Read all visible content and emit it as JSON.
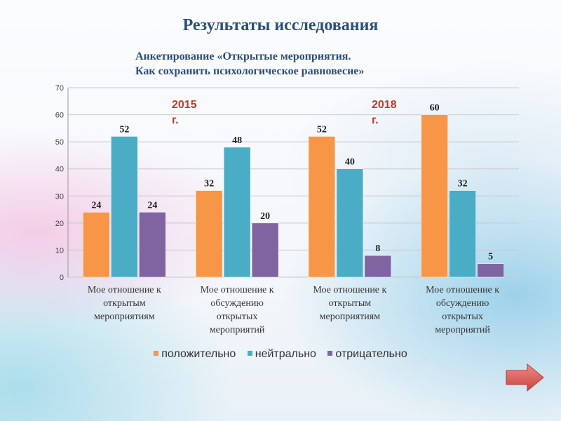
{
  "title": "Результаты исследования",
  "subtitle": {
    "line1": "Анкетирование «Открытые мероприятия.",
    "line2": "Как сохранить психологическое равновесие»"
  },
  "year_labels": [
    {
      "number": "2015",
      "suffix": "г."
    },
    {
      "number": "2018",
      "suffix": "г."
    }
  ],
  "colors": {
    "положительно": "#f79646",
    "нейтрально": "#4bacc6",
    "отрицательно": "#8064a2",
    "arrow": "#e05f5a"
  },
  "nav": {
    "next_icon": "arrow-right-icon"
  },
  "chart_data": {
    "type": "bar",
    "categories": [
      [
        "Мое отношение к",
        "открытым",
        "мероприятиям"
      ],
      [
        "Мое отношение к",
        "обсуждению",
        "открытых",
        "мероприятий"
      ],
      [
        "Мое отношение к",
        "открытым",
        "мероприятиям"
      ],
      [
        "Мое отношение к",
        "обсуждению",
        "открытых",
        "мероприятий"
      ]
    ],
    "series": [
      {
        "name": "положительно",
        "values": [
          24,
          32,
          52,
          60
        ]
      },
      {
        "name": "нейтрально",
        "values": [
          52,
          48,
          40,
          32
        ]
      },
      {
        "name": "отрицательно",
        "values": [
          24,
          20,
          8,
          5
        ]
      }
    ],
    "ylim": [
      0,
      70
    ],
    "yticks": [
      0,
      10,
      20,
      30,
      40,
      50,
      60,
      70
    ],
    "grid": true,
    "legend": "bottom"
  }
}
